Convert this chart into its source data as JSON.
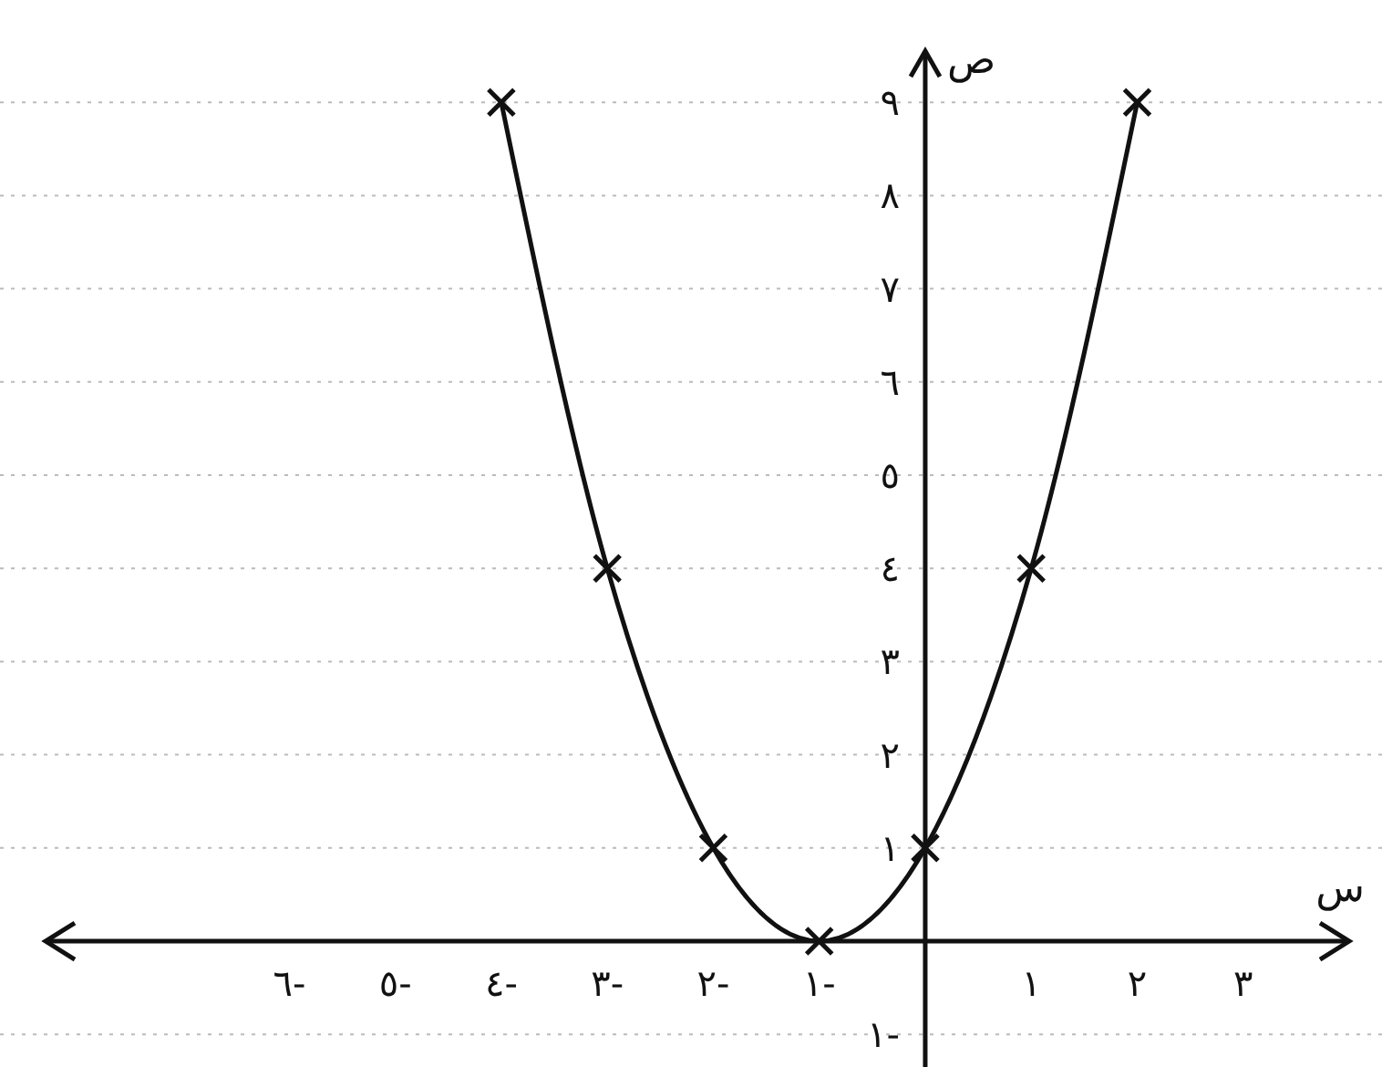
{
  "chart_data": {
    "type": "line",
    "xlabel": "س",
    "ylabel": "ص",
    "x": [
      -4,
      -3,
      -2,
      -1,
      0,
      1,
      2
    ],
    "series": [
      {
        "color": "#111111",
        "values": [
          9,
          4,
          1,
          0,
          1,
          4,
          9
        ]
      }
    ],
    "xlim": [
      -8.3,
      4.0
    ],
    "ylim": [
      -1.35,
      9.55
    ],
    "xticks": [
      {
        "value": -6,
        "label": "٦-"
      },
      {
        "value": -5,
        "label": "٥-"
      },
      {
        "value": -4,
        "label": "٤-"
      },
      {
        "value": -3,
        "label": "٣-"
      },
      {
        "value": -2,
        "label": "٢-"
      },
      {
        "value": -1,
        "label": "١-"
      },
      {
        "value": 1,
        "label": "١"
      },
      {
        "value": 2,
        "label": "٢"
      },
      {
        "value": 3,
        "label": "٣"
      }
    ],
    "yticks": [
      {
        "value": -1,
        "label": "١-"
      },
      {
        "value": 1,
        "label": "١"
      },
      {
        "value": 2,
        "label": "٢"
      },
      {
        "value": 3,
        "label": "٣"
      },
      {
        "value": 4,
        "label": "٤"
      },
      {
        "value": 5,
        "label": "٥"
      },
      {
        "value": 6,
        "label": "٦"
      },
      {
        "value": 7,
        "label": "٧"
      },
      {
        "value": 8,
        "label": "٨"
      },
      {
        "value": 9,
        "label": "٩"
      }
    ],
    "grid": "y",
    "marker": "cross",
    "line_style": "solid"
  }
}
